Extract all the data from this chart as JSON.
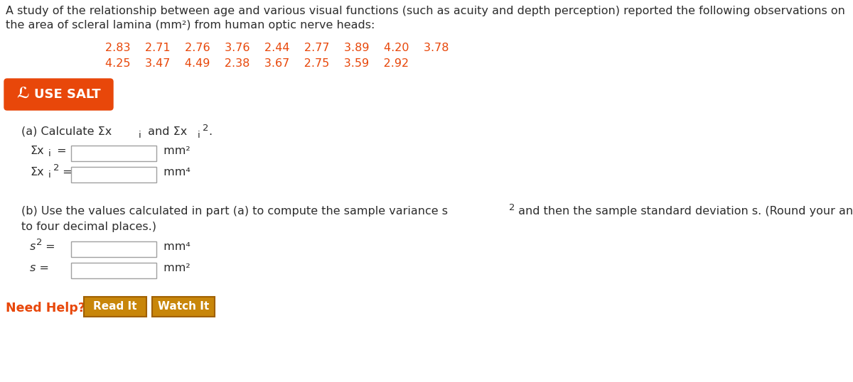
{
  "title_line1": "A study of the relationship between age and various visual functions (such as acuity and depth perception) reported the following observations on",
  "title_line2": "the area of scleral lamina (mm²) from human optic nerve heads:",
  "data_row1": [
    "2.83",
    "2.71",
    "2.76",
    "3.76",
    "2.44",
    "2.77",
    "3.89",
    "4.20",
    "3.78"
  ],
  "data_row2": [
    "4.25",
    "3.47",
    "4.49",
    "2.38",
    "3.67",
    "2.75",
    "3.59",
    "2.92"
  ],
  "data_color": "#e8470a",
  "use_salt_bg": "#e8470a",
  "use_salt_text_color": "#ffffff",
  "use_salt_label": "USE SALT",
  "part_b_full": "(b) Use the values calculated in part (a) to compute the sample variance s² and then the sample standard deviation s. (Round your answers",
  "part_b_line2": "to four decimal places.)",
  "sum_x2_unit": "mm⁴",
  "sum_x_unit": "mm²",
  "s2_unit": "mm⁴",
  "s_unit": "mm²",
  "need_help_text": "Need Help?",
  "need_help_color": "#e8470a",
  "read_it_text": "Read It",
  "watch_it_text": "Watch It",
  "button_bg": "#c8860a",
  "button_border": "#a06000",
  "button_text_color": "#ffffff",
  "background_color": "#ffffff",
  "text_color": "#2d2d2d",
  "input_box_edge": "#a0a0a0",
  "font_size": 11.5
}
